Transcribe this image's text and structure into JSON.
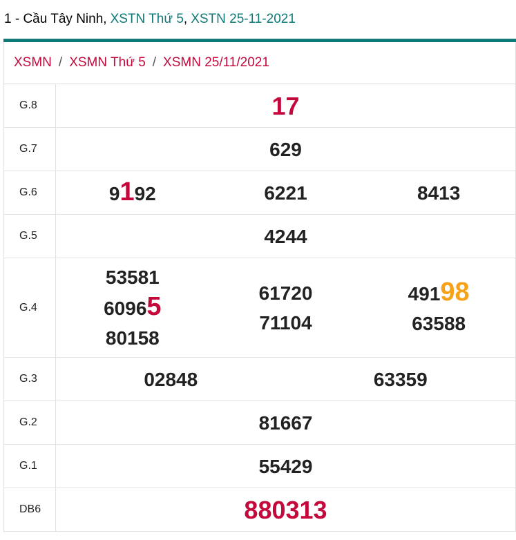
{
  "header": {
    "title_parts": [
      "1 - Cầu Tây Ninh,",
      "XSTN Thứ 5",
      ",",
      "XSTN 25-11-2021"
    ]
  },
  "breadcrumb": [
    "XSMN",
    "/",
    "XSMN Thứ 5",
    "/",
    "XSMN 25/11/2021"
  ],
  "colors": {
    "teal": "#0e7a78",
    "red": "#c5083b",
    "orange": "#f7a21b"
  },
  "rows": [
    {
      "label": "G.8",
      "color": "red",
      "columns": [
        [
          "17"
        ]
      ]
    },
    {
      "label": "G.7",
      "columns": [
        [
          "629"
        ]
      ]
    },
    {
      "label": "G.6",
      "columns": [
        [
          [
            {
              "text": "9"
            },
            {
              "text": "1",
              "highlight": "red"
            },
            {
              "text": "92"
            }
          ]
        ],
        [
          "6221"
        ],
        [
          "8413"
        ]
      ]
    },
    {
      "label": "G.5",
      "columns": [
        [
          "4244"
        ]
      ]
    },
    {
      "label": "G.4",
      "columns": [
        [
          "53581",
          [
            {
              "text": "6096"
            },
            {
              "text": "5",
              "highlight": "red"
            }
          ],
          "80158"
        ],
        [
          "61720",
          "71104"
        ],
        [
          [
            {
              "text": "491"
            },
            {
              "text": "98",
              "highlight": "orange"
            }
          ],
          "63588"
        ]
      ]
    },
    {
      "label": "G.3",
      "columns": [
        [
          "02848"
        ],
        [
          "63359"
        ]
      ]
    },
    {
      "label": "G.2",
      "columns": [
        [
          "81667"
        ]
      ]
    },
    {
      "label": "G.1",
      "columns": [
        [
          "55429"
        ]
      ]
    },
    {
      "label": "DB6",
      "color": "red",
      "columns": [
        [
          "880313"
        ]
      ]
    }
  ]
}
